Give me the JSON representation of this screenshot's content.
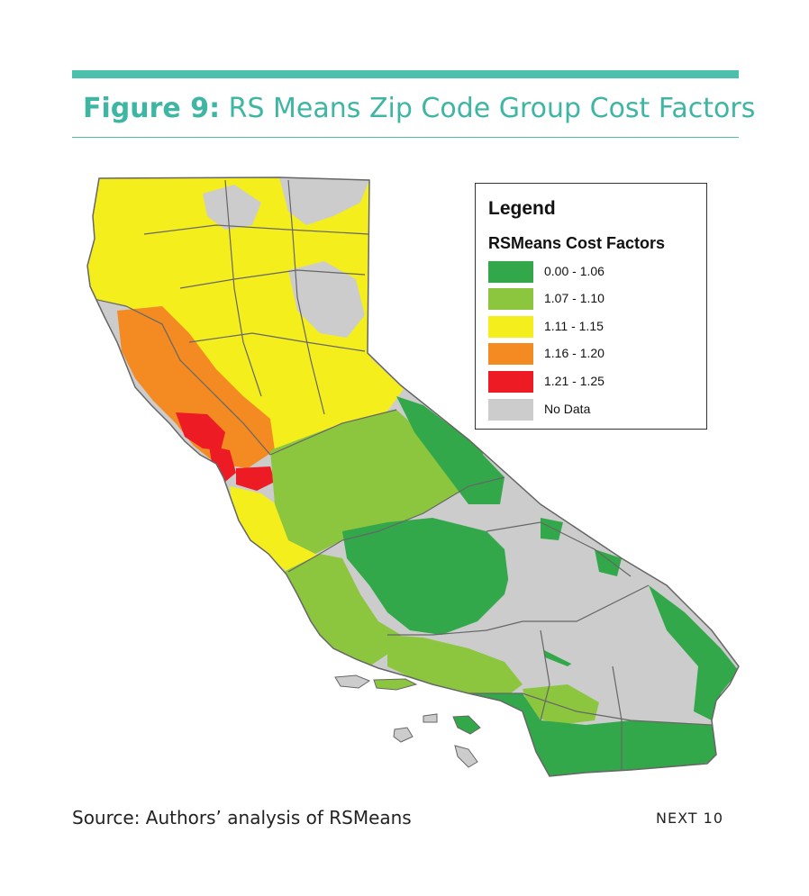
{
  "header": {
    "figure_label": "Figure 9:",
    "title": "RS Means Zip Code Group Cost Factors"
  },
  "map": {
    "region": "California"
  },
  "legend": {
    "title": "Legend",
    "subtitle": "RSMeans Cost Factors",
    "items": [
      {
        "label": "0.00 - 1.06",
        "color": "#33a84a"
      },
      {
        "label": "1.07 - 1.10",
        "color": "#8cc63f"
      },
      {
        "label": "1.11 - 1.15",
        "color": "#f4ee1d"
      },
      {
        "label": "1.16 - 1.20",
        "color": "#f38a22"
      },
      {
        "label": "1.21 - 1.25",
        "color": "#ed1c24"
      },
      {
        "label": "No Data",
        "color": "#cccccc"
      }
    ]
  },
  "footer": {
    "source": "Source: Authors’ analysis of RSMeans",
    "brand": "NEXT 10"
  }
}
